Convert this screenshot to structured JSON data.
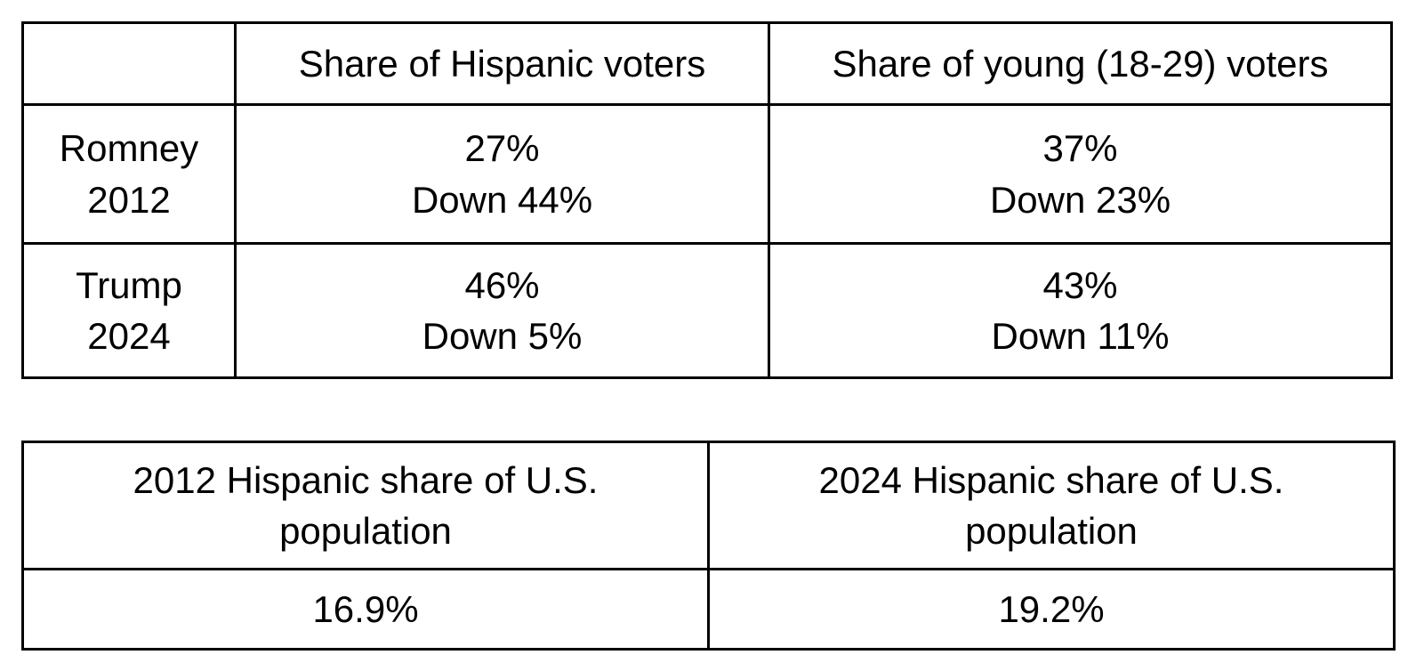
{
  "page": {
    "background_color": "#ffffff",
    "text_color": "#000000",
    "border_color": "#000000"
  },
  "voter_table": {
    "header": {
      "corner": "",
      "hispanic": "Share of Hispanic voters",
      "young": "Share of young (18-29) voters"
    },
    "rows": [
      {
        "candidate": "Romney",
        "year": "2012",
        "hispanic": {
          "share": "27%",
          "change": "Down 44%"
        },
        "young": {
          "share": "37%",
          "change": "Down 23%"
        }
      },
      {
        "candidate": "Trump",
        "year": "2024",
        "hispanic": {
          "share": "46%",
          "change": "Down 5%"
        },
        "young": {
          "share": "43%",
          "change": "Down 11%"
        }
      }
    ]
  },
  "population_table": {
    "columns": [
      {
        "line1": "2012 Hispanic share of U.S.",
        "line2": "population",
        "value": "16.9%"
      },
      {
        "line1": "2024 Hispanic share of U.S.",
        "line2": "population",
        "value": "19.2%"
      }
    ]
  },
  "chart_data": [
    {
      "type": "table",
      "columns": [
        "",
        "Share of Hispanic voters",
        "Share of young (18-29) voters"
      ],
      "rows": [
        [
          "Romney 2012",
          "27% Down 44%",
          "37% Down 23%"
        ],
        [
          "Trump 2024",
          "46% Down 5%",
          "43% Down 11%"
        ]
      ]
    },
    {
      "type": "table",
      "columns": [
        "2012 Hispanic share of U.S. population",
        "2024 Hispanic share of U.S. population"
      ],
      "rows": [
        [
          "16.9%",
          "19.2%"
        ]
      ]
    }
  ]
}
